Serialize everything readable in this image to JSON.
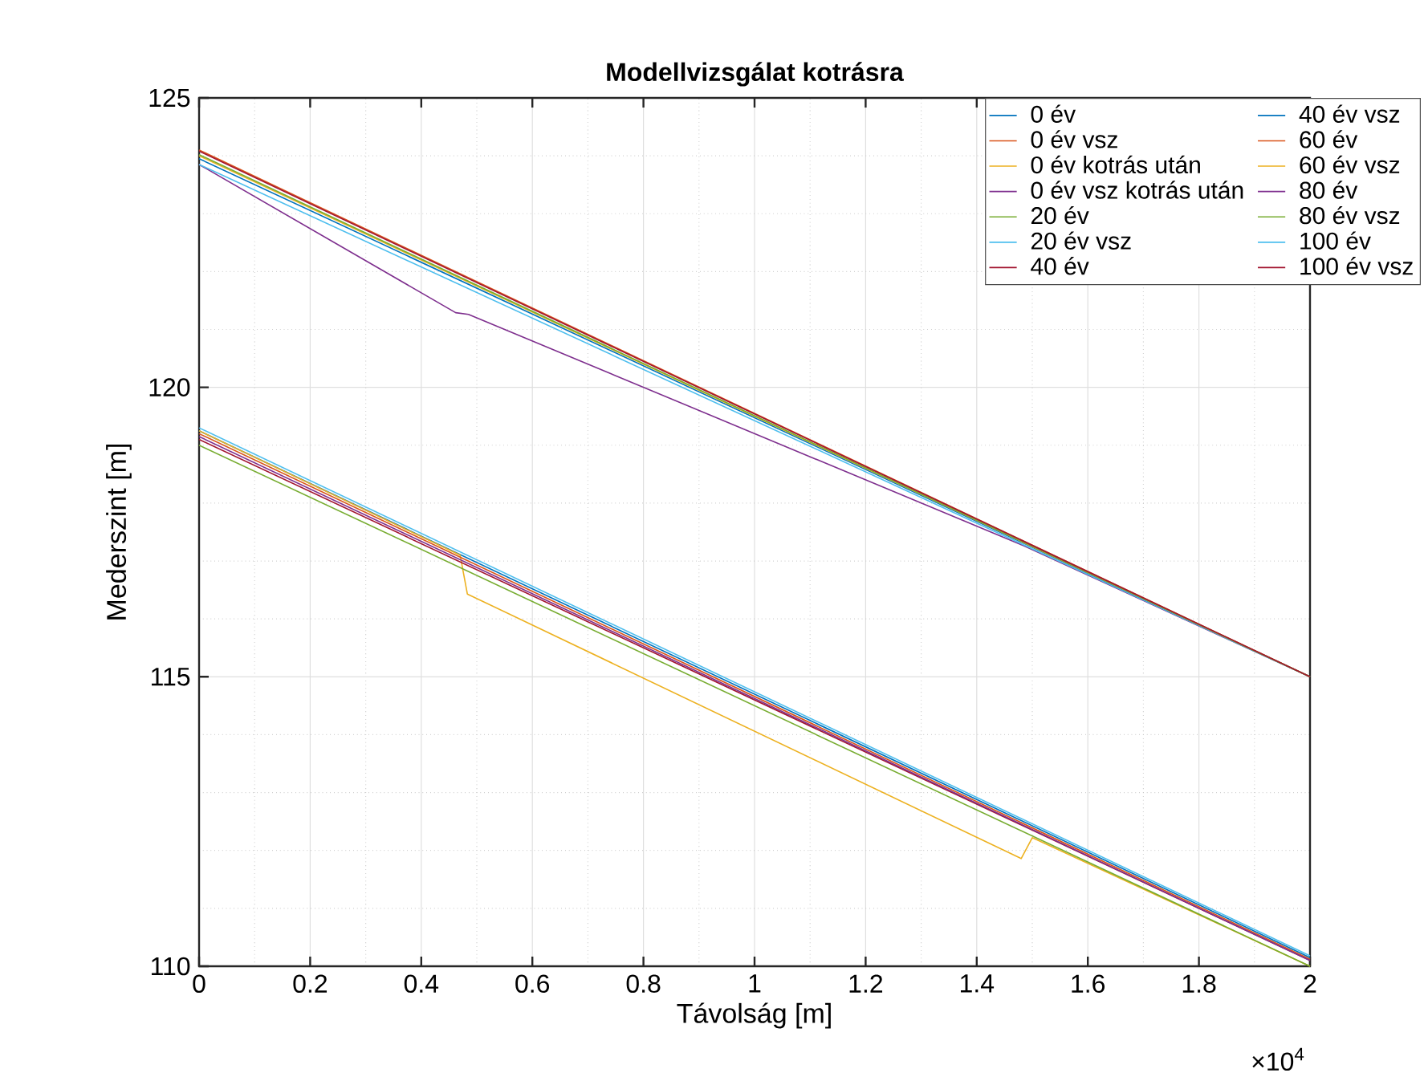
{
  "chart_data": {
    "type": "line",
    "title": "Modellvizsgálat kotrásra",
    "xlabel": "Távolság [m]",
    "ylabel": "Mederszint [m]",
    "xlim": [
      0,
      2
    ],
    "ylim": [
      110,
      125
    ],
    "xticks": [
      0,
      0.2,
      0.4,
      0.6,
      0.8,
      1,
      1.2,
      1.4,
      1.6,
      1.8,
      2
    ],
    "yticks": [
      110,
      115,
      120,
      125
    ],
    "annotations": [
      "×10$^{4}$"
    ],
    "grid": true,
    "legend": "top right",
    "line_style": "solid",
    "marker": "none",
    "series": [
      {
        "name": "0 év",
        "color": "#0072bd",
        "x": [
          0,
          2
        ],
        "values": [
          119.25,
          110.15
        ]
      },
      {
        "name": "0 év vsz",
        "color": "#d95319",
        "x": [
          0,
          2
        ],
        "values": [
          124.1,
          115.0
        ]
      },
      {
        "name": "0 év kotrás után",
        "color": "#edb120",
        "x": [
          0,
          0.47,
          0.483,
          1.48,
          1.5,
          2
        ],
        "values": [
          119.25,
          117.1,
          116.43,
          111.86,
          112.22,
          110.0
        ]
      },
      {
        "name": "0 év vsz kotrás után",
        "color": "#7e2f8e",
        "x": [
          0,
          0.462,
          0.485,
          1.483,
          2
        ],
        "values": [
          123.85,
          121.29,
          121.26,
          117.27,
          115.0
        ]
      },
      {
        "name": "20 év",
        "color": "#77ac30",
        "x": [
          0,
          2
        ],
        "values": [
          119.0,
          110.0
        ]
      },
      {
        "name": "20 év vsz",
        "color": "#4dbeee",
        "x": [
          0,
          1.48,
          2
        ],
        "values": [
          123.85,
          117.3,
          115.0
        ]
      },
      {
        "name": "40 év",
        "color": "#a2142f",
        "x": [
          0,
          2
        ],
        "values": [
          119.1,
          110.1
        ]
      },
      {
        "name": "40 év vsz",
        "color": "#0072bd",
        "x": [
          0,
          2
        ],
        "values": [
          123.95,
          115.0
        ]
      },
      {
        "name": "60 év",
        "color": "#d95319",
        "x": [
          0,
          2
        ],
        "values": [
          119.2,
          110.12
        ]
      },
      {
        "name": "60 év vsz",
        "color": "#edb120",
        "x": [
          0,
          2
        ],
        "values": [
          124.0,
          115.0
        ]
      },
      {
        "name": "80 év",
        "color": "#7e2f8e",
        "x": [
          0,
          2
        ],
        "values": [
          119.15,
          110.1
        ]
      },
      {
        "name": "80 év vsz",
        "color": "#77ac30",
        "x": [
          0,
          2
        ],
        "values": [
          124.02,
          115.0
        ]
      },
      {
        "name": "100 év",
        "color": "#4dbeee",
        "x": [
          0,
          2
        ],
        "values": [
          119.3,
          110.18
        ]
      },
      {
        "name": "100 év vsz",
        "color": "#a2142f",
        "x": [
          0,
          2
        ],
        "values": [
          124.08,
          115.0
        ]
      }
    ]
  }
}
